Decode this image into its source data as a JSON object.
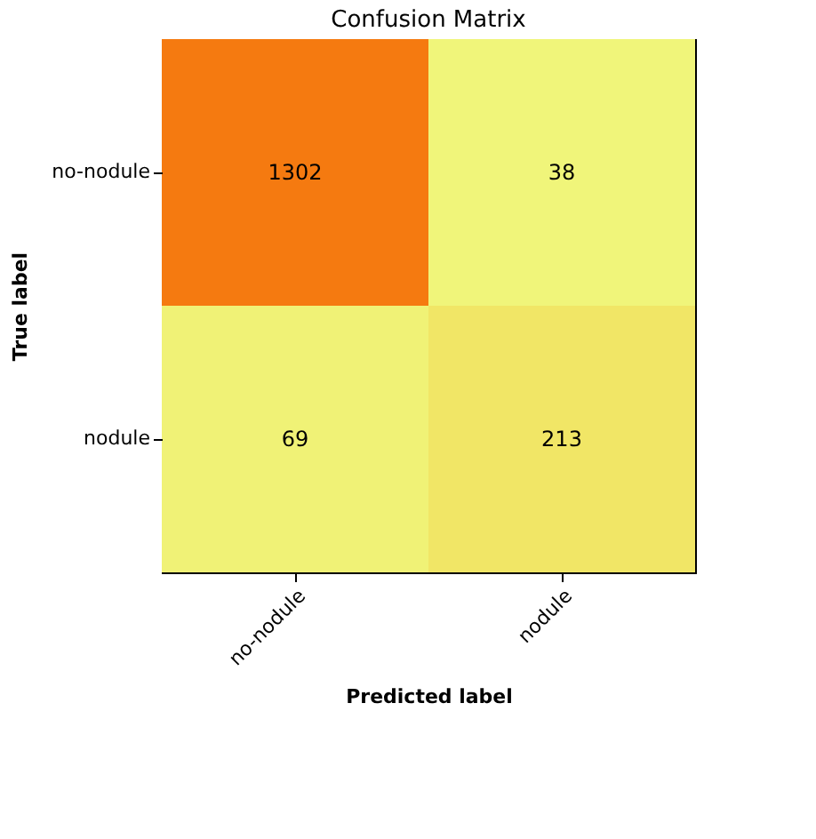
{
  "chart_data": {
    "type": "heatmap",
    "title": "Confusion Matrix",
    "xlabel": "Predicted label",
    "ylabel": "True label",
    "categories": [
      "no-nodule",
      "nodule"
    ],
    "y_categories": [
      "no-nodule",
      "nodule"
    ],
    "cells": [
      [
        1302,
        38
      ],
      [
        69,
        213
      ]
    ],
    "data_labels": true
  }
}
